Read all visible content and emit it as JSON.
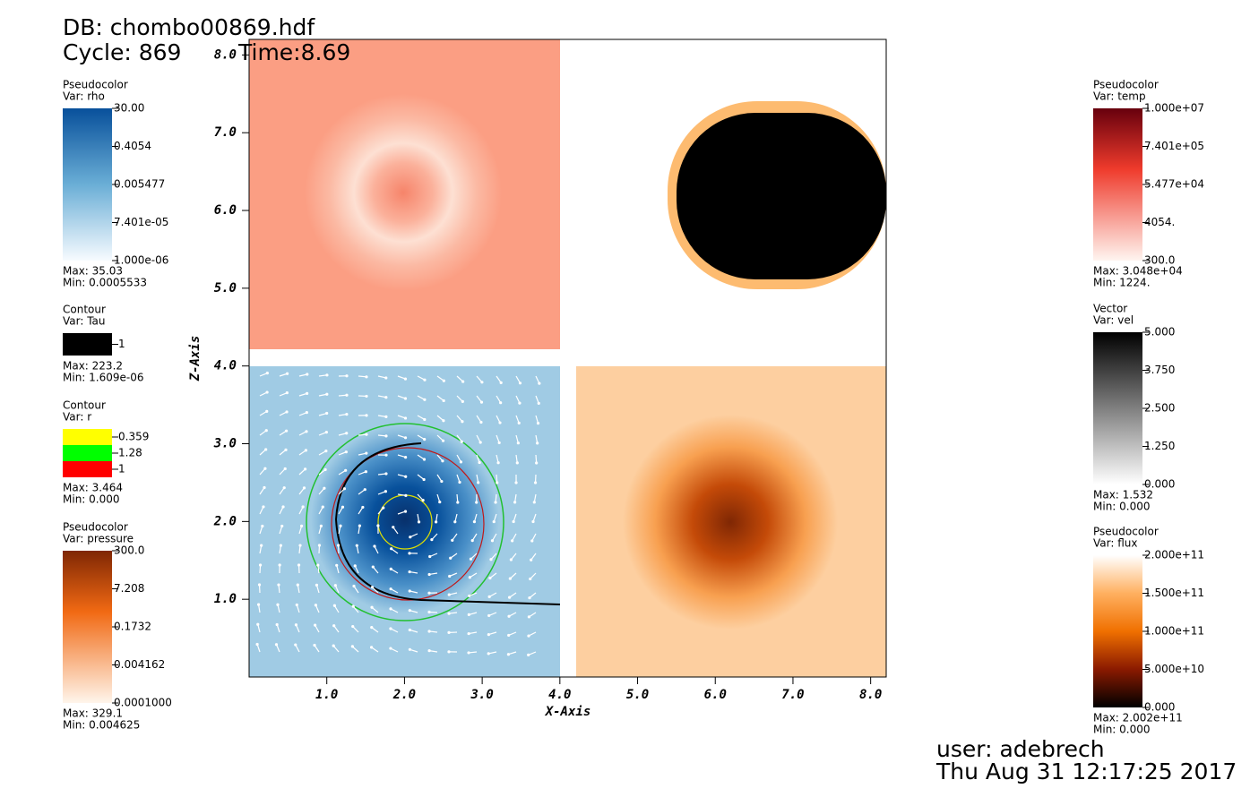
{
  "header": {
    "db": "DB: chombo00869.hdf",
    "cycle": "Cycle: 869",
    "time": "Time:8.69"
  },
  "legends_left": [
    {
      "kind": "Pseudocolor",
      "var": "Var: rho",
      "ticks": [
        "30.00",
        "0.4054",
        "0.005477",
        "7.401e-05",
        "1.000e-06"
      ],
      "max": "Max:  35.03",
      "min": "Min:  0.0005533"
    },
    {
      "kind": "Contour",
      "var": "Var: Tau",
      "levels": [
        "1"
      ],
      "max": "Max:  223.2",
      "min": "Min:  1.609e-06"
    },
    {
      "kind": "Contour",
      "var": "Var: r",
      "levels": [
        "0.359",
        "1.28",
        "1"
      ],
      "max": "Max:  3.464",
      "min": "Min:  0.000"
    },
    {
      "kind": "Pseudocolor",
      "var": "Var: pressure",
      "ticks": [
        "300.0",
        "7.208",
        "0.1732",
        "0.004162",
        "0.0001000"
      ],
      "max": "Max:  329.1",
      "min": "Min:  0.004625"
    }
  ],
  "legends_right": [
    {
      "kind": "Pseudocolor",
      "var": "Var: temp",
      "ticks": [
        "1.000e+07",
        "7.401e+05",
        "5.477e+04",
        "4054.",
        "300.0"
      ],
      "max": "Max:  3.048e+04",
      "min": "Min:  1224."
    },
    {
      "kind": "Vector",
      "var": "Var: vel",
      "ticks": [
        "5.000",
        "3.750",
        "2.500",
        "1.250",
        "0.000"
      ],
      "max": "Max:  1.532",
      "min": "Min:  0.000"
    },
    {
      "kind": "Pseudocolor",
      "var": "Var: flux",
      "ticks": [
        "2.000e+11",
        "1.500e+11",
        "1.000e+11",
        "5.000e+10",
        "0.000"
      ],
      "max": "Max:  2.002e+11",
      "min": "Min:  0.000"
    }
  ],
  "axes": {
    "x_title": "X-Axis",
    "z_title": "Z-Axis",
    "xlim": [
      0,
      8.2
    ],
    "zlim": [
      0,
      8.2
    ],
    "xticks": [
      {
        "value": 1,
        "label": "1.0"
      },
      {
        "value": 2,
        "label": "2.0"
      },
      {
        "value": 3,
        "label": "3.0"
      },
      {
        "value": 4,
        "label": "4.0"
      },
      {
        "value": 5,
        "label": "5.0"
      },
      {
        "value": 6,
        "label": "6.0"
      },
      {
        "value": 7,
        "label": "7.0"
      },
      {
        "value": 8,
        "label": "8.0"
      }
    ],
    "zticks": [
      {
        "value": 1,
        "label": "1.0"
      },
      {
        "value": 2,
        "label": "2.0"
      },
      {
        "value": 3,
        "label": "3.0"
      },
      {
        "value": 4,
        "label": "4.0"
      },
      {
        "value": 5,
        "label": "5.0"
      },
      {
        "value": 6,
        "label": "6.0"
      },
      {
        "value": 7,
        "label": "7.0"
      },
      {
        "value": 8,
        "label": "8.0"
      }
    ]
  },
  "footer": {
    "user": "user: adebrech",
    "date": "Thu Aug 31 12:17:25 2017"
  }
}
